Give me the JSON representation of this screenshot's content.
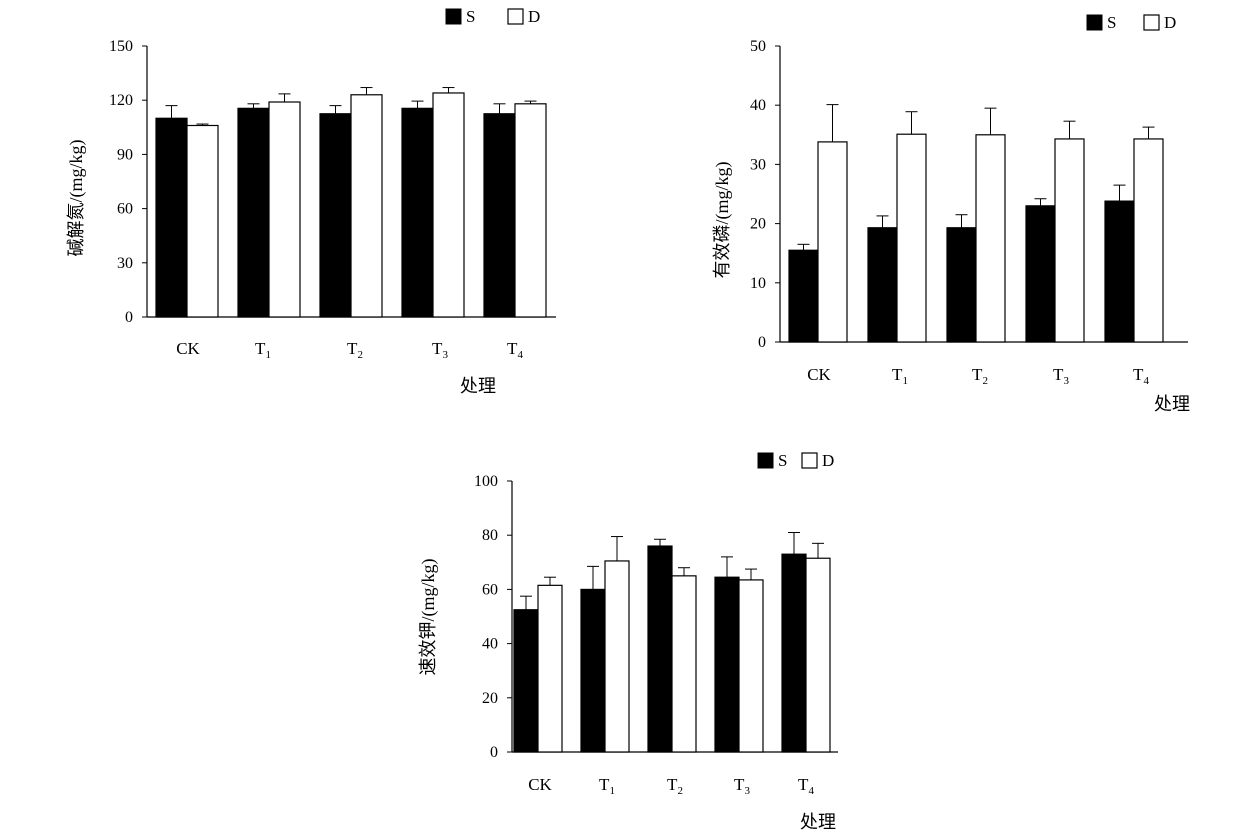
{
  "legend": {
    "s_label": "S",
    "d_label": "D"
  },
  "chart_data": [
    {
      "type": "bar",
      "categories": [
        "CK",
        "T1",
        "T2",
        "T3",
        "T4"
      ],
      "category_labels": [
        {
          "base": "CK",
          "sub": ""
        },
        {
          "base": "T",
          "sub": "1"
        },
        {
          "base": "T",
          "sub": "2"
        },
        {
          "base": "T",
          "sub": "3"
        },
        {
          "base": "T",
          "sub": "4"
        }
      ],
      "ylabel": "碱解氮/(mg/kg)",
      "xlabel": "处理",
      "ylim": [
        0,
        150
      ],
      "yticks": [
        0,
        30,
        60,
        90,
        120,
        150
      ],
      "series": [
        {
          "name": "S",
          "values": [
            110,
            115.5,
            112.5,
            115.5,
            112.5
          ],
          "errors": [
            7,
            2.5,
            4.5,
            4,
            5.5
          ],
          "color": "#000000"
        },
        {
          "name": "D",
          "values": [
            106,
            119,
            123,
            124,
            118
          ],
          "errors": [
            0.8,
            4.5,
            4,
            3,
            1.5
          ],
          "color": "#ffffff"
        }
      ]
    },
    {
      "type": "bar",
      "categories": [
        "CK",
        "T1",
        "T2",
        "T3",
        "T4"
      ],
      "category_labels": [
        {
          "base": "CK",
          "sub": ""
        },
        {
          "base": "T",
          "sub": "1"
        },
        {
          "base": "T",
          "sub": "2"
        },
        {
          "base": "T",
          "sub": "3"
        },
        {
          "base": "T",
          "sub": "4"
        }
      ],
      "ylabel": "有效磷/(mg/kg)",
      "xlabel": "处理",
      "ylim": [
        0,
        50
      ],
      "yticks": [
        0,
        10,
        20,
        30,
        40,
        50
      ],
      "series": [
        {
          "name": "S",
          "values": [
            15.5,
            19.3,
            19.3,
            23,
            23.8
          ],
          "errors": [
            1,
            2,
            2.2,
            1.2,
            2.7
          ],
          "color": "#000000"
        },
        {
          "name": "D",
          "values": [
            33.8,
            35.1,
            35,
            34.3,
            34.3
          ],
          "errors": [
            6.3,
            3.8,
            4.5,
            3,
            2
          ]
        }
      ]
    },
    {
      "type": "bar",
      "categories": [
        "CK",
        "T1",
        "T2",
        "T3",
        "T4"
      ],
      "category_labels": [
        {
          "base": "CK",
          "sub": ""
        },
        {
          "base": "T",
          "sub": "1"
        },
        {
          "base": "T",
          "sub": "2"
        },
        {
          "base": "T",
          "sub": "3"
        },
        {
          "base": "T",
          "sub": "4"
        }
      ],
      "ylabel": "速效钾/(mg/kg)",
      "xlabel": "处理",
      "ylim": [
        0,
        100
      ],
      "yticks": [
        0,
        20,
        40,
        60,
        80,
        100
      ],
      "series": [
        {
          "name": "S",
          "values": [
            52.5,
            60,
            76,
            64.5,
            73
          ],
          "errors": [
            5,
            8.5,
            2.5,
            7.5,
            8
          ]
        },
        {
          "name": "D",
          "values": [
            61.5,
            70.5,
            65,
            63.5,
            71.5
          ],
          "errors": [
            3,
            9,
            3,
            4,
            5.5
          ]
        }
      ]
    }
  ]
}
